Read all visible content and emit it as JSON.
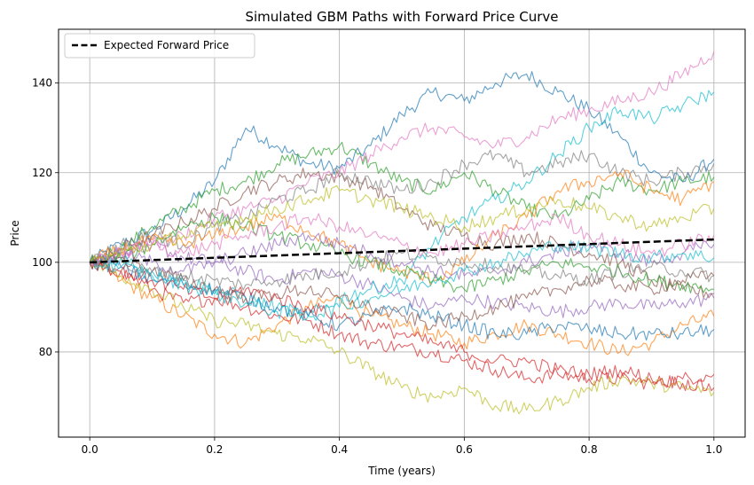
{
  "chart_data": {
    "type": "line",
    "title": "Simulated GBM Paths with Forward Price Curve",
    "xlabel": "Time (years)",
    "ylabel": "Price",
    "xlim": [
      -0.05,
      1.05
    ],
    "ylim": [
      61,
      152
    ],
    "xticks": [
      0.0,
      0.2,
      0.4,
      0.6,
      0.8,
      1.0
    ],
    "xtick_labels": [
      "0.0",
      "0.2",
      "0.4",
      "0.6",
      "0.8",
      "1.0"
    ],
    "yticks": [
      80,
      100,
      120,
      140
    ],
    "ytick_labels": [
      "80",
      "100",
      "120",
      "140"
    ],
    "grid": true,
    "legend": {
      "placement": "top-left",
      "entries": [
        "Expected Forward Price"
      ]
    },
    "forward_curve": {
      "name": "Expected Forward Price",
      "color": "#000000",
      "style": "dashed",
      "x": [
        0.0,
        1.0
      ],
      "y": [
        100.0,
        105.1
      ]
    },
    "path_x": [
      0.0,
      0.05,
      0.1,
      0.15,
      0.2,
      0.25,
      0.3,
      0.35,
      0.4,
      0.45,
      0.5,
      0.55,
      0.6,
      0.65,
      0.7,
      0.75,
      0.8,
      0.85,
      0.9,
      0.95,
      1.0
    ],
    "series": [
      {
        "color": "#1f77b4",
        "values": [
          100,
          104,
          107,
          112,
          118,
          130,
          126,
          122,
          121,
          126,
          133,
          138,
          136,
          140,
          142,
          138,
          134,
          128,
          120,
          118,
          123
        ]
      },
      {
        "color": "#ff7f0e",
        "values": [
          100,
          96,
          92,
          88,
          84,
          82,
          86,
          90,
          92,
          88,
          86,
          84,
          82,
          84,
          86,
          84,
          82,
          80,
          82,
          86,
          88
        ]
      },
      {
        "color": "#2ca02c",
        "values": [
          100,
          103,
          108,
          112,
          116,
          118,
          122,
          124,
          126,
          122,
          118,
          116,
          120,
          116,
          112,
          110,
          114,
          118,
          116,
          118,
          119
        ]
      },
      {
        "color": "#d62728",
        "values": [
          100,
          98,
          94,
          91,
          92,
          90,
          88,
          87,
          84,
          82,
          81,
          80,
          78,
          76,
          74,
          75,
          74,
          74,
          73,
          74,
          75
        ]
      },
      {
        "color": "#9467bd",
        "values": [
          100,
          102,
          104,
          101,
          100,
          98,
          96,
          98,
          97,
          95,
          92,
          90,
          92,
          91,
          90,
          89,
          90,
          91,
          90,
          91,
          92
        ]
      },
      {
        "color": "#8c564b",
        "values": [
          100,
          103,
          106,
          109,
          112,
          116,
          118,
          120,
          119,
          117,
          112,
          108,
          106,
          104,
          106,
          104,
          102,
          100,
          96,
          94,
          93
        ]
      },
      {
        "color": "#e377c2",
        "values": [
          100,
          102,
          104,
          106,
          110,
          112,
          114,
          118,
          120,
          124,
          128,
          130,
          128,
          126,
          128,
          132,
          134,
          136,
          138,
          142,
          147
        ]
      },
      {
        "color": "#7f7f7f",
        "values": [
          100,
          104,
          106,
          104,
          108,
          110,
          114,
          116,
          120,
          118,
          116,
          118,
          122,
          124,
          120,
          122,
          124,
          120,
          118,
          120,
          122
        ]
      },
      {
        "color": "#bcbd22",
        "values": [
          100,
          97,
          94,
          90,
          87,
          86,
          84,
          83,
          80,
          76,
          72,
          70,
          72,
          68,
          67,
          69,
          72,
          74,
          73,
          72,
          71
        ]
      },
      {
        "color": "#17becf",
        "values": [
          100,
          101,
          98,
          96,
          94,
          92,
          90,
          88,
          92,
          94,
          96,
          104,
          110,
          114,
          118,
          124,
          130,
          134,
          132,
          135,
          138
        ]
      },
      {
        "color": "#1f77b4",
        "values": [
          100,
          99,
          96,
          95,
          94,
          92,
          90,
          88,
          86,
          88,
          90,
          88,
          86,
          84,
          84,
          86,
          85,
          84,
          84,
          84,
          85
        ]
      },
      {
        "color": "#ff7f0e",
        "values": [
          100,
          103,
          105,
          104,
          106,
          108,
          110,
          107,
          104,
          100,
          98,
          96,
          100,
          106,
          110,
          116,
          118,
          120,
          116,
          114,
          118
        ]
      },
      {
        "color": "#2ca02c",
        "values": [
          100,
          101,
          104,
          108,
          110,
          108,
          106,
          104,
          102,
          100,
          98,
          96,
          94,
          96,
          98,
          100,
          99,
          98,
          96,
          95,
          94
        ]
      },
      {
        "color": "#d62728",
        "values": [
          100,
          98,
          96,
          94,
          92,
          94,
          92,
          90,
          88,
          86,
          84,
          82,
          80,
          78,
          78,
          76,
          75,
          76,
          74,
          73,
          72
        ]
      },
      {
        "color": "#9467bd",
        "values": [
          100,
          102,
          100,
          98,
          100,
          102,
          104,
          106,
          104,
          102,
          100,
          98,
          97,
          98,
          100,
          102,
          104,
          102,
          100,
          102,
          104
        ]
      },
      {
        "color": "#8c564b",
        "values": [
          100,
          101,
          98,
          96,
          94,
          92,
          93,
          94,
          92,
          90,
          88,
          86,
          88,
          90,
          92,
          94,
          96,
          95,
          94,
          96,
          97
        ]
      },
      {
        "color": "#e377c2",
        "values": [
          100,
          102,
          104,
          102,
          104,
          106,
          108,
          110,
          108,
          106,
          104,
          102,
          104,
          106,
          108,
          110,
          106,
          104,
          102,
          104,
          106
        ]
      },
      {
        "color": "#7f7f7f",
        "values": [
          100,
          99,
          98,
          97,
          96,
          95,
          96,
          97,
          98,
          100,
          102,
          101,
          100,
          99,
          98,
          97,
          96,
          98,
          99,
          98,
          97
        ]
      },
      {
        "color": "#bcbd22",
        "values": [
          100,
          102,
          104,
          106,
          108,
          110,
          112,
          114,
          116,
          114,
          112,
          110,
          108,
          110,
          112,
          114,
          112,
          110,
          108,
          110,
          112
        ]
      },
      {
        "color": "#17becf",
        "values": [
          100,
          99,
          97,
          95,
          93,
          91,
          89,
          88,
          90,
          92,
          94,
          96,
          98,
          100,
          102,
          104,
          103,
          102,
          101,
          102,
          101
        ]
      }
    ]
  }
}
